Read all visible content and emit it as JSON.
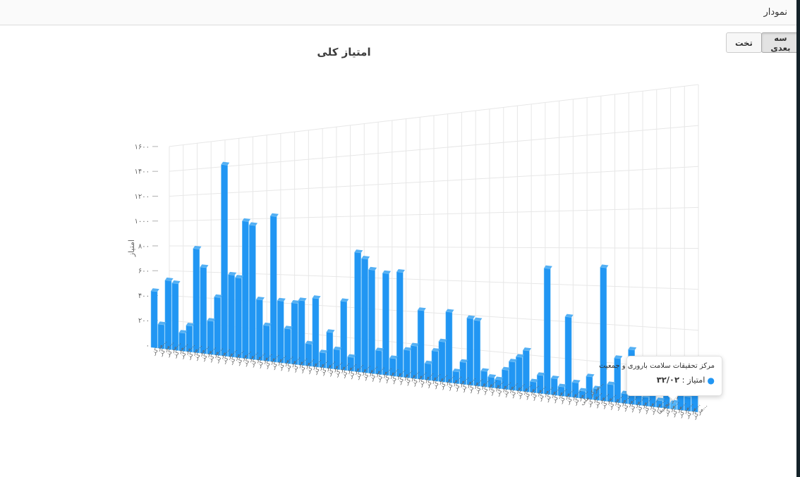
{
  "header": {
    "title": "نمودار"
  },
  "toolbar": {
    "threed_label": "سه بعدی",
    "flat_label": "تخت",
    "active": "سه بعدی"
  },
  "tooltip": {
    "line1": "مرکز تحقیقات سلامت باروری و جمعیت",
    "label": "امتیاز : ",
    "value": "۳۲/۰۲",
    "marker_color": "#2196f3"
  },
  "chart_data": {
    "type": "bar",
    "style": "3d-column",
    "title": "امتیاز کلی",
    "xlabel": "",
    "ylabel": "امتیاز",
    "ylim": [
      0,
      1600
    ],
    "ytick_step": 200,
    "ytick_labels": [
      "۰",
      "۲۰۰",
      "۴۰۰",
      "۶۰۰",
      "۸۰۰",
      "۱۰۰۰",
      "۱۲۰۰",
      "۱۴۰۰",
      "۱۶۰۰"
    ],
    "grid": true,
    "legend": false,
    "bar_color": "#2196f3",
    "bar_top_color": "#54b0f4",
    "bar_hover_color": "#4cb2f8",
    "bar_edge_color": "#7ec8f8",
    "grid_color": "#e7e7e7",
    "axis_text_color": "#666666",
    "hover_index": 74,
    "hovered_point": {
      "name": "مرکز تحقیقات سلامت باروری و جمعیت",
      "value": 32.02
    },
    "categories": [
      "مرکز...",
      "مرکز...",
      "مرکز...",
      "مرکز...",
      "مرکز...",
      "مرکز...",
      "مرکز...",
      "مرکز...",
      "مرکز...",
      "مرکز...",
      "مرکز...",
      "مرکز...",
      "مرکز...",
      "مرکز...",
      "مرکز...",
      "مرکز...",
      "مرکز...",
      "مرکز...",
      "مرکز...",
      "مرکز...",
      "مرکز...",
      "مرکز...",
      "مرکز...",
      "مرکز...",
      "مرکز...",
      "مرکز...",
      "مرکز...",
      "مرکز...",
      "مرکز...",
      "مرکز...",
      "مرکز...",
      "مرکز...",
      "مرکز...",
      "مرکز...",
      "مرکز...",
      "مرکز...",
      "مرکز...",
      "مرکز...",
      "مرکز...",
      "مرکز...",
      "مرکز...",
      "مرکز...",
      "مرکز...",
      "مرکز...",
      "مرکز...",
      "مرکز...",
      "مرکز...",
      "مرکز...",
      "مرکز...",
      "مرکز...",
      "مرکز...",
      "مرکز...",
      "مرکز...",
      "مرکز...",
      "مرکز...",
      "مرکز...",
      "مرکز...",
      "مرکز...",
      "مرکز...",
      "مرکز...",
      "مرکز...",
      "مرکز ملی...",
      "مرکز...",
      "مرکز...",
      "مرکز...",
      "مرکز...",
      "مرکز...",
      "مرکز...",
      "مرکز...",
      "مرکز...",
      "مرکز...",
      "مرکز...",
      "مرکز تحقیقا...",
      "مرکز...",
      "مرکز...",
      "مرکز...",
      "مرکز...",
      "مرکز..."
    ],
    "values": [
      450,
      190,
      540,
      520,
      140,
      200,
      790,
      650,
      250,
      430,
      1410,
      600,
      580,
      990,
      960,
      430,
      250,
      1020,
      430,
      240,
      420,
      440,
      150,
      460,
      100,
      240,
      130,
      450,
      90,
      770,
      730,
      660,
      150,
      640,
      110,
      650,
      170,
      200,
      420,
      100,
      180,
      240,
      420,
      70,
      130,
      390,
      380,
      90,
      60,
      50,
      110,
      160,
      190,
      230,
      60,
      100,
      690,
      90,
      50,
      430,
      80,
      40,
      120,
      60,
      700,
      90,
      230,
      50,
      280,
      60,
      45,
      80,
      35,
      70,
      32.02,
      120,
      70,
      140
    ]
  }
}
